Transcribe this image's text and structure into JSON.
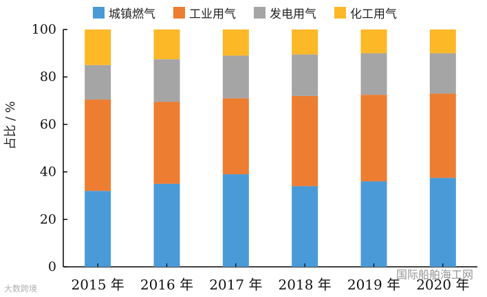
{
  "chart_data": {
    "type": "bar",
    "stacked": true,
    "ylabel": "占比 / %",
    "ylim": [
      0,
      100
    ],
    "yticks": [
      0,
      20,
      40,
      60,
      80,
      100
    ],
    "categories": [
      "2015 年",
      "2016 年",
      "2017 年",
      "2018 年",
      "2019 年",
      "2020 年"
    ],
    "series": [
      {
        "name": "城镇燃气",
        "color": "#4a9ad8",
        "values": [
          32,
          35,
          39,
          34,
          36,
          37.5
        ]
      },
      {
        "name": "工业用气",
        "color": "#ed7d31",
        "values": [
          38.5,
          34.5,
          32,
          38,
          36.5,
          35.5
        ]
      },
      {
        "name": "发电用气",
        "color": "#a5a5a5",
        "values": [
          14.5,
          18,
          18,
          17.5,
          17.5,
          17
        ]
      },
      {
        "name": "化工用气",
        "color": "#fdb827",
        "values": [
          15,
          12.5,
          11,
          10.5,
          10,
          10
        ]
      }
    ],
    "legend_position": "top",
    "grid": false
  },
  "watermarks": {
    "left": "大数跨境",
    "right": "国际船舶海工网"
  }
}
